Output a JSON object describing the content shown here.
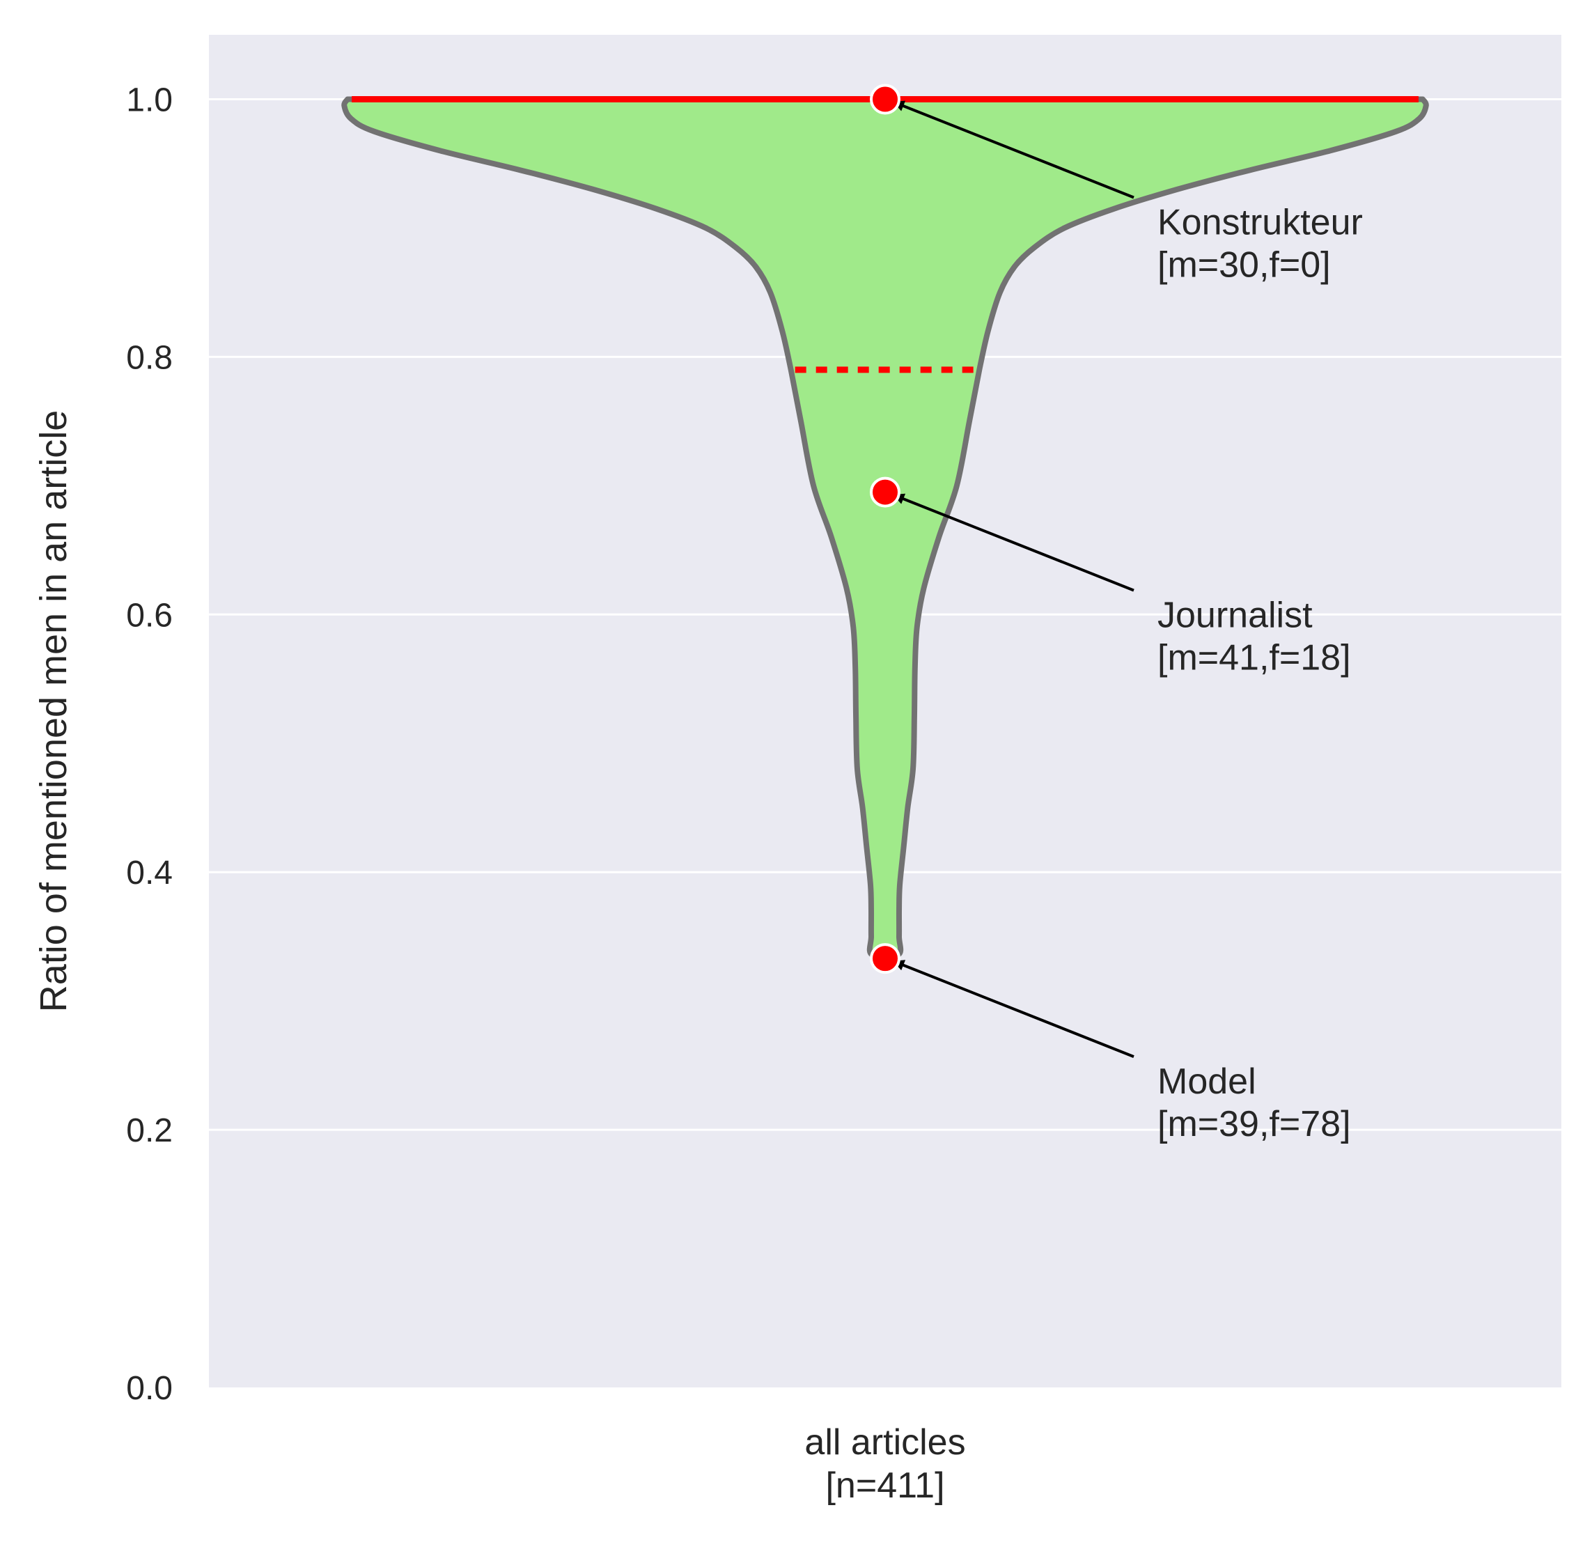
{
  "chart_data": {
    "type": "violin",
    "title": "",
    "xlabel": "",
    "ylabel": "Ratio of mentioned men in an article",
    "ylim": [
      0.0,
      1.05
    ],
    "yticks": [
      "0.0",
      "0.2",
      "0.4",
      "0.6",
      "0.8",
      "1.0"
    ],
    "category": {
      "line1": "all articles",
      "line2": "[n=411]"
    },
    "grid": "horizontal",
    "colors": {
      "background": "#eaeaf2",
      "grid": "#ffffff",
      "violin_fill": "#a0ea8a",
      "violin_edge": "#727272",
      "median_line": "#ff0000",
      "quartile_line": "#ff0000",
      "point": "#ff0000",
      "arrow": "#000000"
    },
    "median": 1.0,
    "lower_quartile": 0.79,
    "density_profile": [
      {
        "y": 1.0,
        "w": 0.81
      },
      {
        "y": 0.995,
        "w": 0.815
      },
      {
        "y": 0.985,
        "w": 0.805
      },
      {
        "y": 0.975,
        "w": 0.77
      },
      {
        "y": 0.96,
        "w": 0.67
      },
      {
        "y": 0.945,
        "w": 0.55
      },
      {
        "y": 0.93,
        "w": 0.44
      },
      {
        "y": 0.915,
        "w": 0.345
      },
      {
        "y": 0.9,
        "w": 0.27
      },
      {
        "y": 0.885,
        "w": 0.225
      },
      {
        "y": 0.87,
        "w": 0.195
      },
      {
        "y": 0.85,
        "w": 0.173
      },
      {
        "y": 0.82,
        "w": 0.155
      },
      {
        "y": 0.79,
        "w": 0.142
      },
      {
        "y": 0.75,
        "w": 0.127
      },
      {
        "y": 0.7,
        "w": 0.108
      },
      {
        "y": 0.66,
        "w": 0.081
      },
      {
        "y": 0.62,
        "w": 0.058
      },
      {
        "y": 0.59,
        "w": 0.048
      },
      {
        "y": 0.56,
        "w": 0.045
      },
      {
        "y": 0.52,
        "w": 0.044
      },
      {
        "y": 0.48,
        "w": 0.042
      },
      {
        "y": 0.45,
        "w": 0.034
      },
      {
        "y": 0.42,
        "w": 0.028
      },
      {
        "y": 0.39,
        "w": 0.022
      },
      {
        "y": 0.37,
        "w": 0.021
      },
      {
        "y": 0.35,
        "w": 0.021
      },
      {
        "y": 0.336,
        "w": 0.02
      }
    ],
    "annotations": [
      {
        "point": 1.0,
        "label": "Konstrukteur",
        "counts": "[m=30,f=0]"
      },
      {
        "point": 0.695,
        "label": "Journalist",
        "counts": "[m=41,f=18]"
      },
      {
        "point": 0.333,
        "label": "Model",
        "counts": "[m=39,f=78]"
      }
    ]
  }
}
